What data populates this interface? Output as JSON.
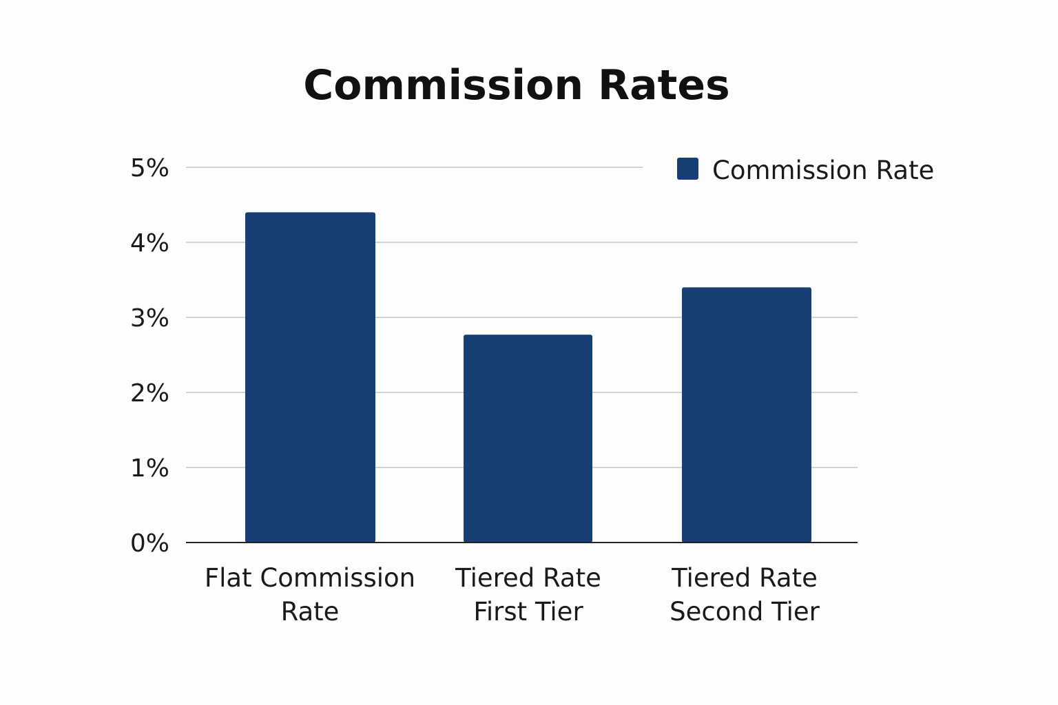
{
  "chart_data": {
    "type": "bar",
    "title": "Commission Rates",
    "categories": [
      [
        "Flat Commission",
        "Rate"
      ],
      [
        "Tiered Rate",
        "First Tier"
      ],
      [
        "Tiered Rate",
        "Second Tier"
      ]
    ],
    "series": [
      {
        "name": "Commission Rate",
        "values": [
          4.4,
          2.77,
          3.4
        ],
        "color": "#173f74"
      }
    ],
    "y_ticks": [
      "0%",
      "1%",
      "2%",
      "3%",
      "4%",
      "5%"
    ],
    "ylim": [
      0,
      5
    ],
    "grid": true,
    "legend_position": "top-right"
  }
}
